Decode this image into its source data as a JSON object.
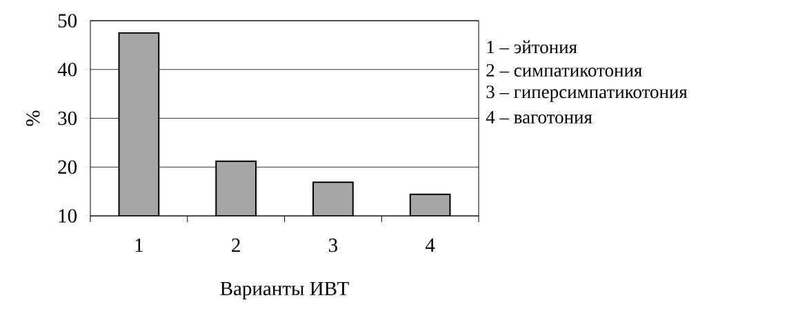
{
  "chart_data": {
    "type": "bar",
    "xlabel": "Варианты ИВТ",
    "ylabel": "%",
    "categories": [
      "1",
      "2",
      "3",
      "4"
    ],
    "values": [
      47.5,
      21.2,
      16.9,
      14.4
    ],
    "color": "#a6a6a6",
    "ylim": [
      10,
      50
    ],
    "yticks": [
      10,
      20,
      30,
      40,
      50
    ],
    "grid": "y",
    "annotations": [
      "1 – эйтония",
      "2 – симпатикотония",
      "3 – гиперсимпатикотония",
      "4 – ваготония"
    ]
  }
}
